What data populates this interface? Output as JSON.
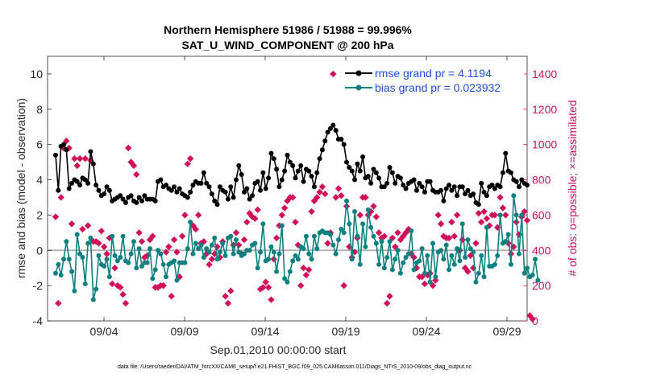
{
  "chart_data": {
    "type": "line",
    "title_line1": "Northern Hemisphere 51986 / 51988 = 99.996%",
    "title_line2": "SAT_U_WIND_COMPONENT @ 200 hPa",
    "xlabel": "Sep.01,2010 00:00:00 start",
    "ylabel_left": "rmse and bias (model - observation)",
    "ylabel_right": "# of obs: o=possible; ×=assimilated",
    "footnote": "data file: /Users/raeder/DAI/ATM_forcXX/CAM6_setup/f.e21.FHIST_BGC.f09_025.CAM6assim.011/Diags_NTrS_2010-09/obs_diag_output.nc",
    "xlim": [
      0.5,
      30.25
    ],
    "ylim_left": [
      -4,
      11
    ],
    "ylim_right": [
      0,
      1500
    ],
    "x_ticks": [
      4,
      9,
      14,
      19,
      24,
      29
    ],
    "x_tick_labels": [
      "09/04",
      "09/09",
      "09/14",
      "09/19",
      "09/24",
      "09/29"
    ],
    "y_ticks_left": [
      -4,
      -2,
      0,
      2,
      4,
      6,
      8,
      10
    ],
    "y_ticks_right": [
      0,
      200,
      400,
      600,
      800,
      1000,
      1200,
      1400
    ],
    "grid": false,
    "legend_position": "top-right",
    "colors": {
      "rmse": "#000000",
      "bias": "#0d8080",
      "obs": "#d0105a",
      "legend_text": "#1f4fd1",
      "zero_line": "#b3b3b3"
    },
    "series": [
      {
        "name": "rmse grand pr = 4.1194",
        "axis": "left",
        "values": [
          5.4,
          3.4,
          5.9,
          6.0,
          5.7,
          3.5,
          3.8,
          4.0,
          3.9,
          3.7,
          4.1,
          4.0,
          3.8,
          5.6,
          4.9,
          3.7,
          3.4,
          3.1,
          3.2,
          3.6,
          3.4,
          2.8,
          2.9,
          3.0,
          3.1,
          2.9,
          2.7,
          3.0,
          3.1,
          2.8,
          2.7,
          3.0,
          2.8,
          3.1,
          2.9,
          2.9,
          2.9,
          2.8,
          3.9,
          4.0,
          3.6,
          3.7,
          3.5,
          3.4,
          3.6,
          3.3,
          3.5,
          3.2,
          3.1,
          3.0,
          3.3,
          3.7,
          3.9,
          3.8,
          3.8,
          4.4,
          3.8,
          3.6,
          3.2,
          2.8,
          2.6,
          3.6,
          3.4,
          3.3,
          2.9,
          3.6,
          3.0,
          4.0,
          4.8,
          4.3,
          3.3,
          3.5,
          2.9,
          3.1,
          3.8,
          3.9,
          3.4,
          4.4,
          3.5,
          4.1,
          5.5,
          5.2,
          4.6,
          3.6,
          4.0,
          4.5,
          5.4,
          5.0,
          4.8,
          4.1,
          4.5,
          4.8,
          3.9,
          4.6,
          4.5,
          4.2,
          3.6,
          4.4,
          5.2,
          5.7,
          6.2,
          6.7,
          6.9,
          7.1,
          6.8,
          6.3,
          6.3,
          6.0,
          5.0,
          4.7,
          4.5,
          4.0,
          4.9,
          4.5,
          5.3,
          4.1,
          4.2,
          3.8,
          4.6,
          4.4,
          4.1,
          3.6,
          3.6,
          3.8,
          4.7,
          4.4,
          3.8,
          4.2,
          4.1,
          3.7,
          3.5,
          3.8,
          3.9,
          4.0,
          3.4,
          3.8,
          3.6,
          3.3,
          3.9,
          3.9,
          3.4,
          3.3,
          3.3,
          3.4,
          2.8,
          3.5,
          3.7,
          3.4,
          3.6,
          3.1,
          3.6,
          3.6,
          3.2,
          3.4,
          3.1,
          3.2,
          2.7,
          2.6,
          3.8,
          3.3,
          3.1,
          3.6,
          3.7,
          3.5,
          3.7,
          3.6,
          4.4,
          5.5,
          4.5,
          4.4,
          4.0,
          3.9,
          3.6,
          4.0,
          3.8,
          3.7
        ]
      },
      {
        "name": "bias grand pr = 0.023932",
        "axis": "left",
        "values": [
          -1.3,
          -0.8,
          -1.4,
          -0.5,
          0.5,
          -0.5,
          -1.2,
          -2.3,
          0.9,
          -0.2,
          -0.4,
          -1.9,
          0.4,
          0.7,
          -2.8,
          -2.2,
          -0.3,
          -0.8,
          -0.9,
          -0.5,
          -1.5,
          0.8,
          -0.3,
          -0.6,
          -0.4,
          0.8,
          -0.6,
          -0.7,
          -0.2,
          0.5,
          -1.0,
          0.1,
          -0.9,
          -0.7,
          -0.7,
          0.1,
          -1.6,
          -1.1,
          0.0,
          -0.2,
          -0.8,
          -1.5,
          -0.8,
          -0.7,
          -0.6,
          -1.7,
          -0.7,
          -0.7,
          -0.7,
          0.1,
          1.6,
          -0.2,
          0.4,
          0.1,
          0.3,
          -0.4,
          0.1,
          -0.1,
          0.3,
          0.7,
          -0.5,
          -0.1,
          0.4,
          -0.3,
          0.7,
          0.8,
          -0.2,
          0.6,
          -0.1,
          -0.3,
          -0.2,
          0.0,
          0.0,
          0.3,
          0.4,
          -1.0,
          -0.1,
          1.5,
          -0.6,
          -0.5,
          0.2,
          -0.1,
          -1.2,
          -0.2,
          1.4,
          -1.6,
          -1.8,
          -1.2,
          -0.6,
          -0.3,
          -0.5,
          0.2,
          0.1,
          0.8,
          -0.2,
          -0.5,
          0.8,
          0.1,
          1.0,
          1.1,
          1.0,
          1.0,
          0.9,
          0.3,
          -0.2,
          0.6,
          1.2,
          1.0,
          2.8,
          1.5,
          -0.5,
          2.2,
          0.8,
          -0.8,
          1.5,
          0.2,
          2.3,
          1.3,
          0.8,
          0.4,
          -0.8,
          0.5,
          -1.0,
          -0.4,
          0.5,
          -1.1,
          -0.5,
          0.0,
          -1.3,
          -0.7,
          -0.4,
          -0.2,
          1.1,
          -1.1,
          -0.7,
          -0.6,
          0.1,
          -1.3,
          -0.3,
          -1.8,
          0.4,
          -1.5,
          -0.1,
          0.0,
          -0.5,
          0.3,
          -1.1,
          -0.3,
          -0.8,
          0.1,
          -0.6,
          1.5,
          -0.4,
          0.6,
          0.1,
          -0.1,
          -1.8,
          -1.3,
          -0.3,
          -1.5,
          1.3,
          -0.9,
          -0.9,
          -0.8,
          -0.3,
          2.0,
          0.4,
          0.5,
          0.9,
          -0.8,
          3.1,
          2.0,
          -0.2,
          2.0,
          -1.3,
          -1.0,
          -1.5,
          -1.4,
          -0.5,
          -1.7
        ]
      },
      {
        "name": "possible",
        "axis": "right",
        "values": [
          590,
          100,
          700,
          980,
          1020,
          980,
          550,
          920,
          880,
          920,
          520,
          920,
          540,
          910,
          450,
          450,
          440,
          510,
          420,
          380,
          470,
          210,
          300,
          200,
          190,
          150,
          100,
          980,
          900,
          880,
          830,
          500,
          450,
          360,
          370,
          460,
          480,
          190,
          190,
          200,
          200,
          390,
          420,
          140,
          460,
          390,
          250,
          480,
          600,
          890,
          920,
          540,
          520,
          600,
          440,
          450,
          380,
          320,
          350,
          380,
          420,
          360,
          450,
          140,
          100,
          170,
          430,
          500,
          430,
          380,
          460,
          560,
          610,
          590,
          580,
          630,
          180,
          190,
          220,
          190,
          120,
          350,
          470,
          540,
          600,
          640,
          680,
          700,
          700,
          560,
          430,
          200,
          300,
          260,
          290,
          620,
          680,
          700,
          730,
          760,
          720,
          440,
          500,
          1400,
          700,
          750,
          710,
          200,
          650,
          420,
          360,
          390,
          470,
          600,
          700,
          700,
          600,
          620,
          650,
          590,
          500,
          470,
          480,
          100,
          140,
          470,
          420,
          500,
          460,
          480,
          500,
          520,
          380,
          360,
          300,
          250,
          250,
          210,
          260,
          270,
          200,
          230,
          600,
          550,
          480,
          470,
          470,
          560,
          480,
          600,
          400,
          460,
          300,
          280,
          370,
          300,
          440,
          610,
          560,
          620,
          580,
          540,
          600,
          600,
          530,
          700,
          640,
          600,
          440,
          380,
          420,
          560,
          490,
          590,
          620,
          570,
          30,
          10
        ]
      }
    ]
  }
}
